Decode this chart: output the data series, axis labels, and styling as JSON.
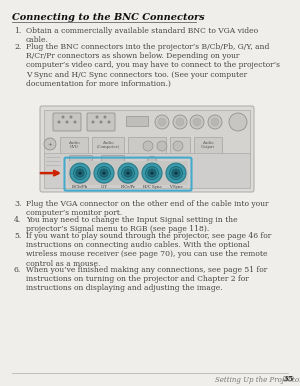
{
  "bg_color": "#f0eeeb",
  "text_color": "#444444",
  "title": "Connecting to the BNC Connectors",
  "footer_italic": "Setting Up the Projector",
  "footer_page": "35",
  "item1": "Obtain a commercially available standard BNC to VGA video\ncable.",
  "item2_plain": "Plug the BNC connectors into the projector’s B/Cb/Pb, G/Y, and\nR/Cr/Pr connectors as shown below. Depending on your\ncomputer’s video card, you may have to connect to the projector’s\nV Sync and H/C Sync connectors too. (See your computer\ndocumentation for more information.)",
  "item3": "Plug the VGA connector on the other end of the cable into your\ncomputer’s monitor port.",
  "item4_plain": "You may need to change the Input Signal setting in the\nprojector’s Signal menu to RGB (see page 118).",
  "item5": "If you want to play sound through the projector, see page 46 for\ninstructions on connecting audio cables. With the optional\nwireless mouse receiver (see page 70), you can use the remote\ncontrol as a mouse.",
  "item6": "When you’ve finished making any connections, see page 51 for\ninstructions on turning on the projector and Chapter 2 for\ninstructions on displaying and adjusting the image.",
  "connector_labels": [
    "B/Cb/Pb",
    "G/Y",
    "R/Cr/Pr",
    "H/C Sync",
    "V Sync"
  ],
  "teal_dark": "#2a7a8a",
  "teal_mid": "#3a9aaa",
  "teal_light": "#50b0c0",
  "arrow_color": "#cc2200",
  "cyan_box": "#44aacc",
  "diag_bg": "#e0dedd",
  "diag_border": "#999999",
  "connector_bg": "#cccccc",
  "small_text_size": 5.5,
  "title_size": 7.0,
  "footer_size": 5.0
}
